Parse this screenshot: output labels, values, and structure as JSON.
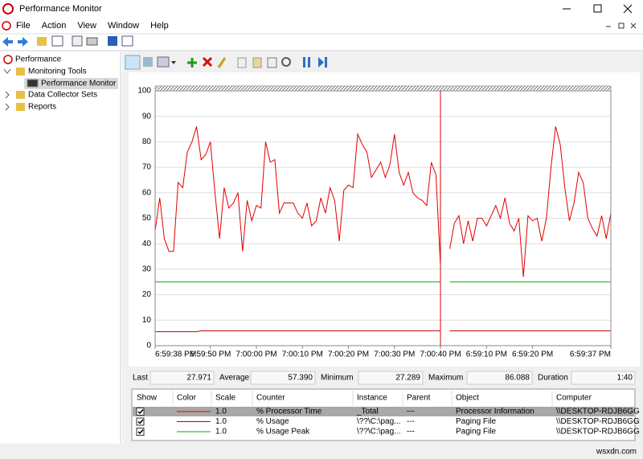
{
  "window": {
    "title": "Performance Monitor"
  },
  "menu": [
    "File",
    "Action",
    "View",
    "Window",
    "Help"
  ],
  "tree": [
    "Performance",
    "Monitoring Tools",
    "Performance Monitor",
    "Data Collector Sets",
    "Reports"
  ],
  "chart_data": {
    "type": "line",
    "ylim": [
      0,
      100
    ],
    "yticks": [
      0,
      10,
      20,
      30,
      40,
      50,
      60,
      70,
      80,
      90,
      100
    ],
    "xlim": [
      0,
      99
    ],
    "xticks": [
      {
        "value": 0,
        "label": "6:59:38 PM"
      },
      {
        "value": 12,
        "label": "6:59:50 PM"
      },
      {
        "value": 22,
        "label": "7:00:00 PM"
      },
      {
        "value": 32,
        "label": "7:00:10 PM"
      },
      {
        "value": 42,
        "label": "7:00:20 PM"
      },
      {
        "value": 52,
        "label": "7:00:30 PM"
      },
      {
        "value": 62,
        "label": "7:00:40 PM"
      },
      {
        "value": 72,
        "label": "6:59:10 PM"
      },
      {
        "value": 82,
        "label": "6:59:20 PM"
      },
      {
        "value": 99,
        "label": "6:59:37 PM"
      }
    ],
    "grid": true,
    "series": [
      {
        "name": "% Processor Time",
        "color": "#e00000",
        "x": [
          0,
          1,
          2,
          3,
          4,
          5,
          6,
          7,
          8,
          9,
          10,
          11,
          12,
          13,
          14,
          15,
          16,
          17,
          18,
          19,
          20,
          21,
          22,
          23,
          24,
          25,
          26,
          27,
          28,
          29,
          30,
          31,
          32,
          33,
          34,
          35,
          36,
          37,
          38,
          39,
          40,
          41,
          42,
          43,
          44,
          45,
          46,
          47,
          48,
          49,
          50,
          51,
          52,
          53,
          54,
          55,
          56,
          57,
          58,
          59,
          60,
          61,
          62,
          63,
          64,
          65,
          66,
          67,
          68,
          69,
          70,
          71,
          72,
          73,
          74,
          75,
          76,
          77,
          78,
          79,
          80,
          81,
          82,
          83,
          84,
          85,
          86,
          87,
          88,
          89,
          90,
          91,
          92,
          93,
          94,
          95,
          96,
          97,
          98,
          99
        ],
        "values": [
          45,
          58,
          42,
          37,
          37,
          64,
          62,
          76,
          80,
          86,
          73,
          75,
          80,
          60,
          42,
          62,
          54,
          56,
          60,
          37,
          57,
          49,
          55,
          54,
          80,
          72,
          73,
          52,
          56,
          56,
          56,
          52,
          50,
          56,
          47,
          49,
          58,
          52,
          62,
          57,
          41,
          61,
          63,
          62,
          83,
          79,
          76,
          66,
          69,
          72,
          66,
          71,
          83,
          68,
          63,
          68,
          60,
          58,
          57,
          55,
          72,
          67,
          31,
          null,
          38,
          48,
          51,
          40,
          49,
          41,
          50,
          50,
          47,
          51,
          55,
          50,
          58,
          48,
          45,
          50,
          27,
          51,
          49,
          50,
          41,
          50,
          70,
          86,
          79,
          62,
          49,
          56,
          68,
          64,
          50,
          46,
          43,
          51,
          42,
          52
        ]
      },
      {
        "name": "% Usage",
        "color": "#c00000",
        "x": [
          0,
          9,
          10,
          62,
          63,
          64,
          99
        ],
        "values": [
          5.5,
          5.5,
          5.8,
          5.8,
          null,
          5.8,
          5.8
        ]
      },
      {
        "name": "% Usage Peak",
        "color": "#00b000",
        "x": [
          0,
          62,
          63,
          64,
          99
        ],
        "values": [
          25,
          25,
          null,
          25,
          25
        ]
      }
    ]
  },
  "stats": [
    {
      "label": "Last",
      "value": "27.971"
    },
    {
      "label": "Average",
      "value": "57.390"
    },
    {
      "label": "Minimum",
      "value": "27.289"
    },
    {
      "label": "Maximum",
      "value": "86.088"
    },
    {
      "label": "Duration",
      "value": "1:40"
    }
  ],
  "counters": {
    "headers": [
      "Show",
      "Color",
      "Scale",
      "Counter",
      "Instance",
      "Parent",
      "Object",
      "Computer"
    ],
    "rows": [
      {
        "scale": "1.0",
        "instance": "_Total",
        "parent": "---",
        "object": "Processor Information",
        "computer": "\\\\DESKTOP-RDJB6GG"
      },
      {
        "scale": "1.0",
        "instance": "\\??\\C:\\pag...",
        "parent": "---",
        "object": "Paging File",
        "computer": "\\\\DESKTOP-RDJB6GG"
      },
      {
        "scale": "1.0",
        "instance": "\\??\\C:\\pag...",
        "parent": "---",
        "object": "Paging File",
        "computer": "\\\\DESKTOP-RDJB6GG"
      }
    ]
  },
  "status": "wsxdn.com"
}
